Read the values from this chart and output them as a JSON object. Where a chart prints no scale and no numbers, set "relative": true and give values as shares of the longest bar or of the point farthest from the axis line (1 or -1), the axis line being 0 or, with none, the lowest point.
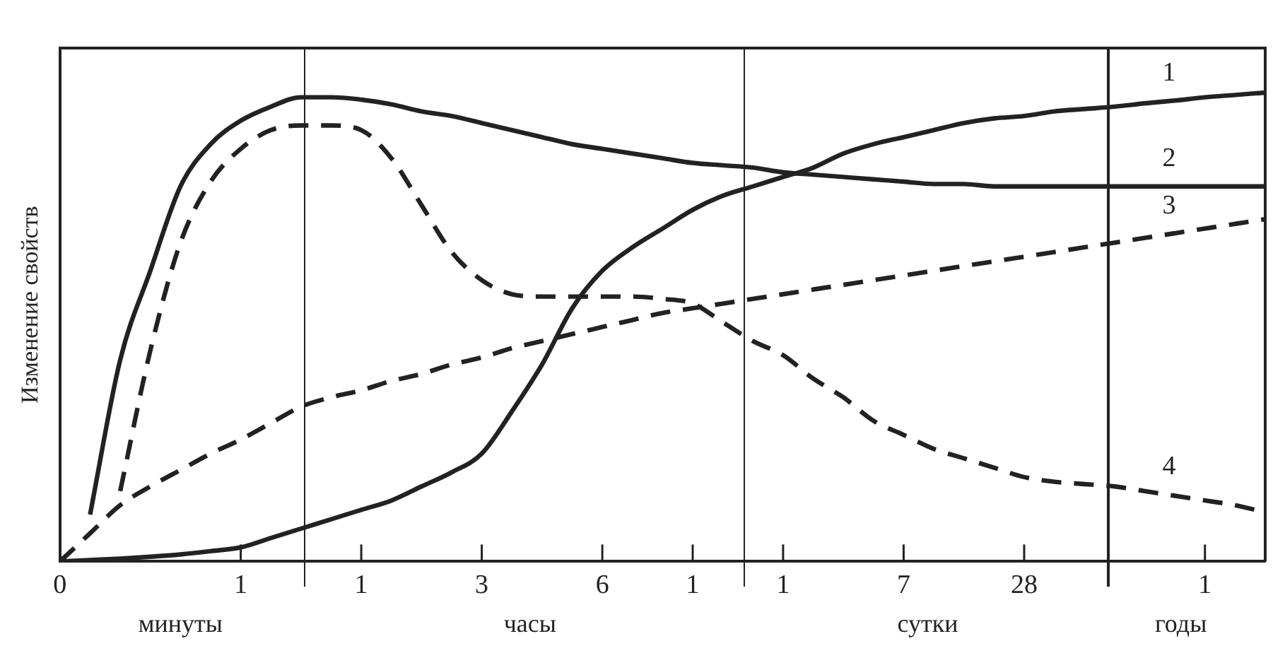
{
  "chart_data": {
    "type": "line",
    "relative": true,
    "ylabel": "Изменение свойств",
    "categories": [
      "0",
      null,
      null,
      null,
      null,
      null,
      "1",
      null,
      null,
      null,
      "1",
      null,
      null,
      null,
      "3",
      null,
      null,
      null,
      "6",
      null,
      null,
      "1",
      null,
      null,
      "1",
      null,
      null,
      null,
      "7",
      null,
      null,
      null,
      "28",
      null,
      null,
      null,
      null,
      null,
      "1",
      null,
      null
    ],
    "annotations": [
      "минуты",
      "часы",
      "сутки",
      "годы"
    ],
    "grid": false,
    "legend": false,
    "marker": "none",
    "series": [
      {
        "name": "1",
        "color": "#222222",
        "line_style": "solid",
        "values": [
          0,
          0.003,
          0.006,
          0.01,
          0.015,
          0.022,
          0.03,
          0.05,
          0.07,
          0.09,
          0.11,
          0.13,
          0.16,
          0.19,
          0.23,
          0.32,
          0.42,
          0.54,
          0.62,
          0.67,
          0.71,
          0.75,
          0.78,
          0.8,
          0.82,
          0.84,
          0.87,
          0.89,
          0.905,
          0.92,
          0.935,
          0.945,
          0.95,
          0.96,
          0.965,
          0.97,
          0.977,
          0.983,
          0.99,
          0.995,
          1
        ]
      },
      {
        "name": "2",
        "color": "#222222",
        "line_style": "solid",
        "values": [
          null,
          0.1,
          0.43,
          0.62,
          0.8,
          0.89,
          0.94,
          0.97,
          0.99,
          0.99,
          0.985,
          0.975,
          0.96,
          0.95,
          0.935,
          0.92,
          0.905,
          0.89,
          0.88,
          0.87,
          0.86,
          0.85,
          0.845,
          0.84,
          0.83,
          0.825,
          0.82,
          0.815,
          0.81,
          0.805,
          0.805,
          0.8,
          0.8,
          0.8,
          0.8,
          0.8,
          0.8,
          0.8,
          0.8,
          0.8,
          0.8
        ]
      },
      {
        "name": "3",
        "color": "#222222",
        "line_style": "dashed",
        "values": [
          0,
          0.06,
          0.12,
          0.16,
          0.195,
          0.23,
          0.26,
          0.295,
          0.33,
          0.35,
          0.365,
          0.385,
          0.4,
          0.42,
          0.435,
          0.455,
          0.47,
          0.485,
          0.5,
          0.515,
          0.53,
          0.54,
          0.55,
          0.56,
          0.57,
          0.58,
          0.59,
          0.6,
          0.61,
          0.62,
          0.63,
          0.64,
          0.65,
          0.66,
          0.67,
          0.68,
          0.69,
          0.7,
          0.71,
          0.72,
          0.73
        ]
      },
      {
        "name": "4",
        "color": "#222222",
        "line_style": "dashed",
        "values": [
          null,
          null,
          0.15,
          0.45,
          0.68,
          0.81,
          0.88,
          0.92,
          0.93,
          0.93,
          0.92,
          0.86,
          0.76,
          0.66,
          0.6,
          0.57,
          0.565,
          0.565,
          0.565,
          0.565,
          0.56,
          0.55,
          0.51,
          0.47,
          0.44,
          0.39,
          0.35,
          0.3,
          0.27,
          0.24,
          0.22,
          0.2,
          0.18,
          0.17,
          0.165,
          0.16,
          0.15,
          0.14,
          0.13,
          0.12,
          0.105
        ]
      }
    ]
  }
}
